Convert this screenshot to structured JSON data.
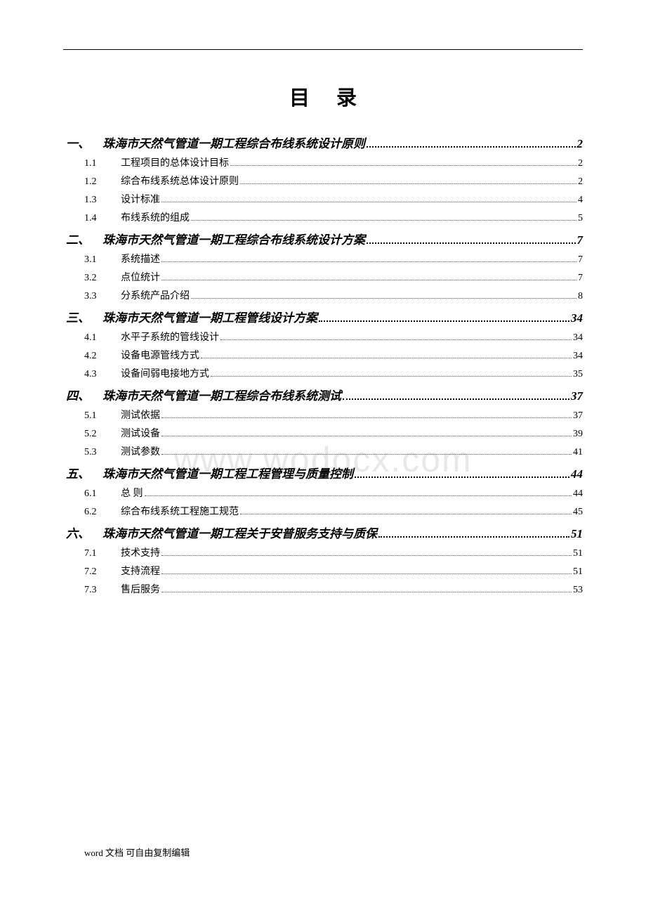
{
  "title": "目录",
  "watermark": "www.wodocx.com",
  "footer": "word 文档 可自由复制编辑",
  "toc": [
    {
      "number": "一、",
      "title": "珠海市天然气管道一期工程综合布线系统设计原则",
      "page": "2",
      "items": [
        {
          "num": "1.1",
          "title": "工程项目的总体设计目标",
          "page": "2"
        },
        {
          "num": "1.2",
          "title": "综合布线系统总体设计原则",
          "page": "2"
        },
        {
          "num": "1.3",
          "title": "设计标准",
          "page": "4"
        },
        {
          "num": "1.4",
          "title": "布线系统的组成",
          "page": "5"
        }
      ]
    },
    {
      "number": "二、",
      "title": "珠海市天然气管道一期工程综合布线系统设计方案",
      "page": "7",
      "items": [
        {
          "num": "3.1",
          "title": "系统描述",
          "page": "7"
        },
        {
          "num": "3.2",
          "title": "点位统计",
          "page": "7"
        },
        {
          "num": "3.3",
          "title": "分系统产品介绍",
          "page": "8"
        }
      ]
    },
    {
      "number": "三、",
      "title": "珠海市天然气管道一期工程管线设计方案",
      "page": "34",
      "items": [
        {
          "num": "4.1",
          "title": "水平子系统的管线设计",
          "page": "34"
        },
        {
          "num": "4.2",
          "title": "设备电源管线方式",
          "page": "34"
        },
        {
          "num": "4.3",
          "title": "设备间弱电接地方式",
          "page": "35"
        }
      ]
    },
    {
      "number": "四、",
      "title": "珠海市天然气管道一期工程综合布线系统测试",
      "page": "37",
      "items": [
        {
          "num": "5.1",
          "title": "测试依据",
          "page": "37"
        },
        {
          "num": "5.2",
          "title": "测试设备",
          "page": "39"
        },
        {
          "num": "5.3",
          "title": "测试参数",
          "page": "41"
        }
      ]
    },
    {
      "number": "五、",
      "title": "珠海市天然气管道一期工程工程管理与质量控制",
      "page": "44",
      "items": [
        {
          "num": "6.1",
          "title": "总 则",
          "page": "44"
        },
        {
          "num": "6.2",
          "title": "综合布线系统工程施工规范",
          "page": "45"
        }
      ]
    },
    {
      "number": "六、",
      "title": "珠海市天然气管道一期工程关于安普服务支持与质保",
      "page": "51",
      "items": [
        {
          "num": "7.1",
          "title": "技术支持",
          "page": "51"
        },
        {
          "num": "7.2",
          "title": "支持流程",
          "page": "51"
        },
        {
          "num": "7.3",
          "title": "售后服务",
          "page": "53"
        }
      ]
    }
  ]
}
